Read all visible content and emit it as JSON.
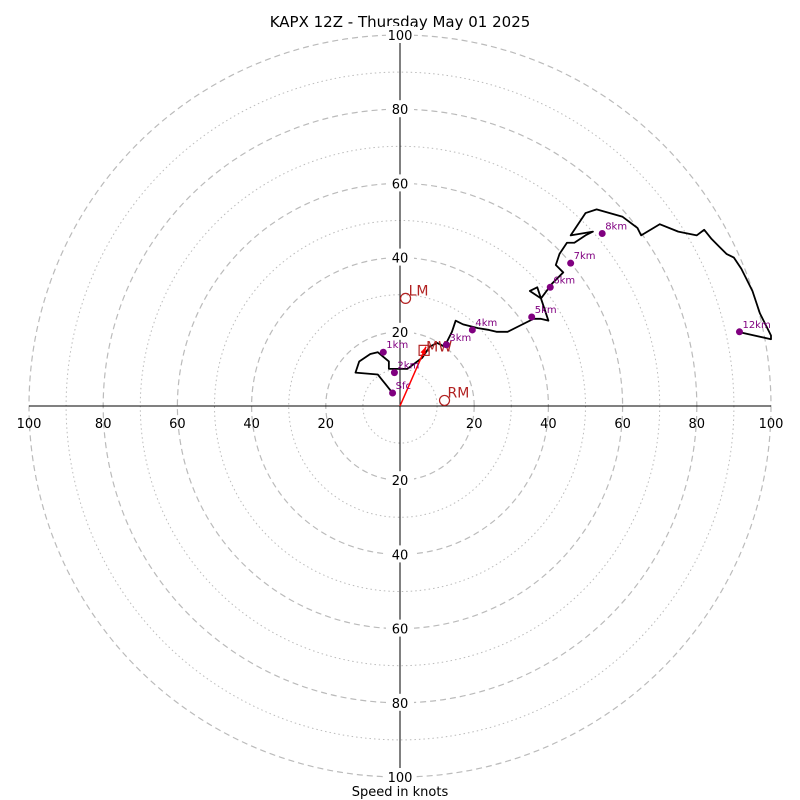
{
  "chart_data": {
    "type": "hodograph",
    "title": "KAPX 12Z - Thursday May 01 2025",
    "xlabel": "Speed in knots",
    "max_speed": 100,
    "ring_major": [
      20,
      40,
      60,
      80,
      100
    ],
    "ring_minor": [
      10,
      30,
      50,
      70,
      90
    ],
    "grid": true,
    "axis_ticks": {
      "left": [
        "100",
        "80",
        "60",
        "40",
        "20"
      ],
      "right": [
        "20",
        "40",
        "60",
        "80",
        "100"
      ],
      "top": [
        "20",
        "40",
        "60",
        "80",
        "100"
      ],
      "bottom": [
        "20",
        "40",
        "60",
        "80",
        "100"
      ]
    },
    "trace": {
      "u": [
        -2,
        -4,
        -6,
        -12,
        -11,
        -8,
        -6,
        -3,
        -3,
        2,
        6,
        8,
        10,
        12,
        14,
        15,
        17,
        21,
        24,
        26,
        29,
        33,
        36,
        38,
        40,
        37,
        35,
        38,
        41,
        44,
        42,
        43,
        45,
        47,
        50,
        52,
        46,
        50,
        53,
        60,
        64,
        65,
        70,
        75,
        80,
        82,
        84,
        86,
        88,
        90,
        92,
        93,
        95,
        97,
        100,
        100,
        91
      ],
      "v": [
        3.5,
        6,
        8.5,
        9,
        12,
        14,
        14.5,
        12,
        10,
        10,
        13,
        16,
        17,
        16,
        20,
        23,
        22,
        21,
        20.5,
        20,
        20,
        22,
        23.5,
        23.5,
        23,
        32,
        31,
        29,
        33,
        36,
        38,
        41,
        44,
        44,
        46,
        47,
        46,
        52,
        53,
        51,
        48,
        46,
        49,
        47,
        46,
        47.5,
        45,
        43,
        41,
        40,
        37,
        35,
        31,
        25,
        19,
        18,
        20
      ]
    },
    "height_markers": [
      {
        "label": "Sfc",
        "u": -2,
        "v": 3.5
      },
      {
        "label": "1km",
        "u": -4.5,
        "v": 14.5
      },
      {
        "label": "2km",
        "u": -1.5,
        "v": 9
      },
      {
        "label": "3km",
        "u": 12.5,
        "v": 16.5
      },
      {
        "label": "4km",
        "u": 19.5,
        "v": 20.5
      },
      {
        "label": "5km",
        "u": 35.5,
        "v": 24
      },
      {
        "label": "6km",
        "u": 40.5,
        "v": 32
      },
      {
        "label": "7km",
        "u": 46,
        "v": 38.5
      },
      {
        "label": "8km",
        "u": 54.5,
        "v": 46.5
      },
      {
        "label": "12km",
        "u": 91.5,
        "v": 20
      }
    ],
    "storm_motion": [
      {
        "label": "LM",
        "u": 1.5,
        "v": 29
      },
      {
        "label": "RM",
        "u": 12,
        "v": 1.5
      }
    ],
    "mean_wind": {
      "label": "MW",
      "u": 6.5,
      "v": 15
    },
    "shear_vector": {
      "u0": 0,
      "v0": 0,
      "u1": 7,
      "v1": 16
    },
    "colors": {
      "trace": "#000000",
      "height_marker": "#800080",
      "storm_motion": "#b22222",
      "shear_vector": "#ff0000",
      "grid": "#bbbbbb",
      "axis": "#000000"
    }
  }
}
